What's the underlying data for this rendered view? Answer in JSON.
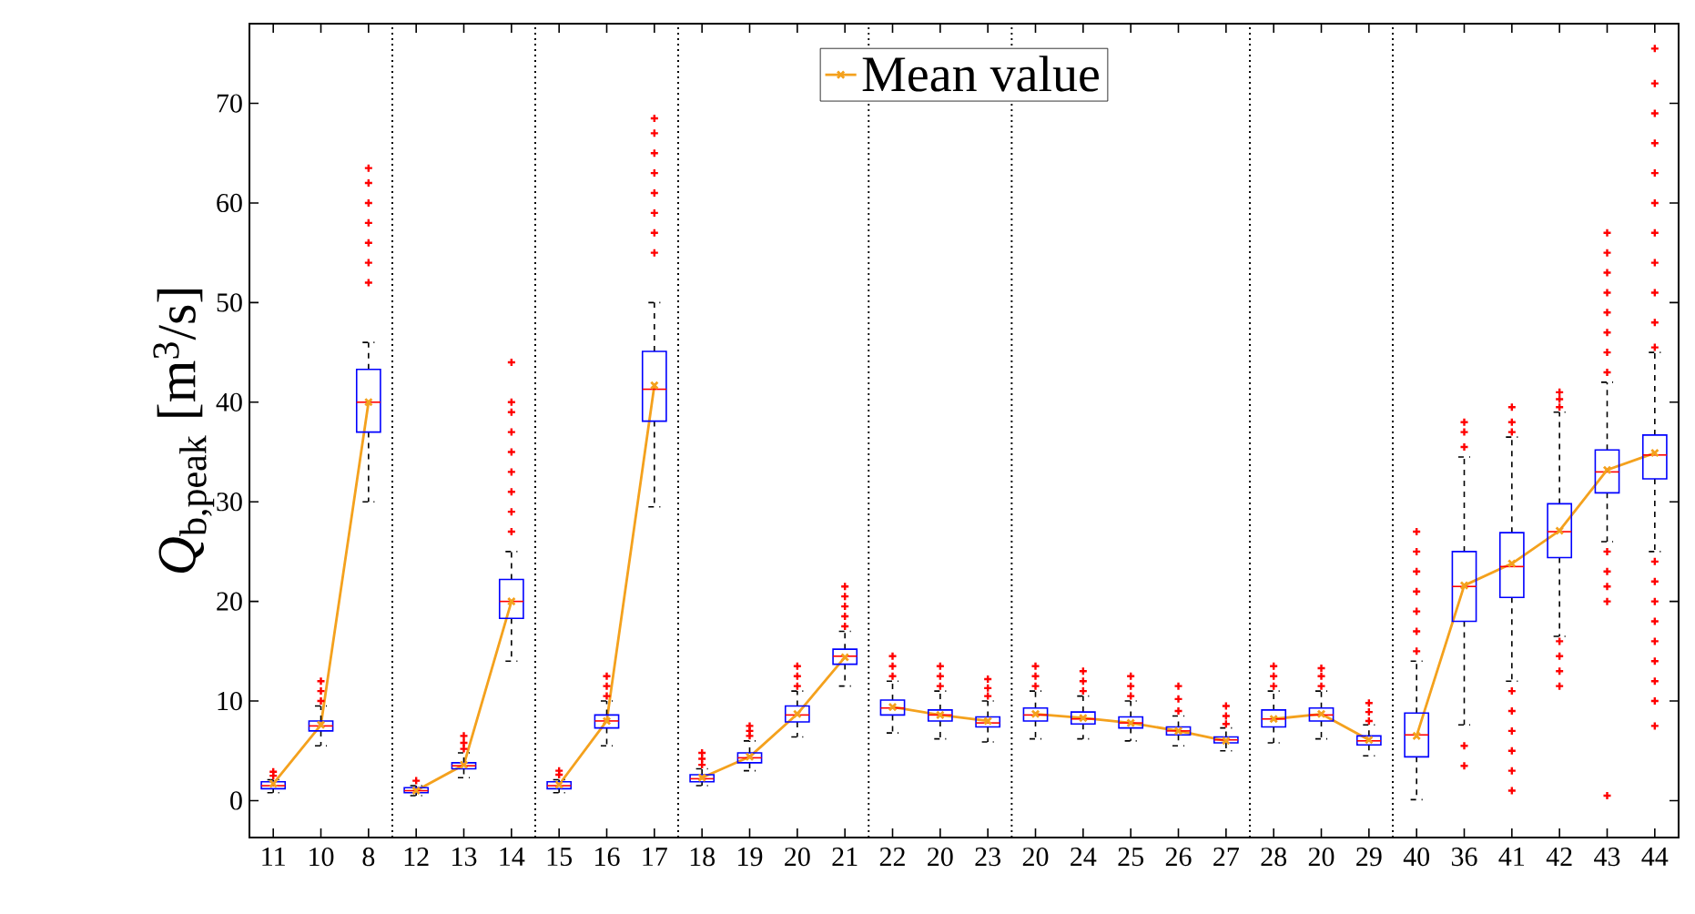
{
  "chart_data": {
    "type": "box",
    "ylabel": "*Q*$_{b,peak}$ [m$^{3}$/s]",
    "categories": [
      "11",
      "10",
      "8",
      "12",
      "13",
      "14",
      "15",
      "16",
      "17",
      "18",
      "19",
      "20",
      "21",
      "22",
      "20",
      "23",
      "20",
      "24",
      "25",
      "26",
      "27",
      "28",
      "20",
      "29",
      "40",
      "36",
      "41",
      "42",
      "43",
      "44"
    ],
    "ylim": [
      -3.7,
      78
    ],
    "yticks": [
      0,
      10,
      20,
      30,
      40,
      50,
      60,
      70
    ],
    "legend": "top",
    "marker": "cross",
    "line_style": "solid",
    "series": [
      {
        "color": "#0000ff",
        "boxes": [
          {
            "low": 0.8,
            "q1": 1.2,
            "median": 1.5,
            "q3": 1.9,
            "high": 2.1,
            "outliers": [
              2.5,
              2.9
            ]
          },
          {
            "low": 5.5,
            "q1": 7.0,
            "median": 7.5,
            "q3": 8.0,
            "high": 9.5,
            "outliers": [
              10,
              11,
              12
            ]
          },
          {
            "low": 30,
            "q1": 37,
            "median": 40,
            "q3": 43.3,
            "high": 46,
            "outliers": [
              52,
              54,
              56,
              58,
              60,
              62,
              63.5
            ]
          },
          {
            "low": 0.5,
            "q1": 0.8,
            "median": 1.0,
            "q3": 1.3,
            "high": 1.5,
            "outliers": [
              2.0
            ]
          },
          {
            "low": 2.3,
            "q1": 3.2,
            "median": 3.5,
            "q3": 3.8,
            "high": 4.8,
            "outliers": [
              5.2,
              5.8,
              6.5
            ]
          },
          {
            "low": 14,
            "q1": 18.3,
            "median": 20,
            "q3": 22.2,
            "high": 25,
            "outliers": [
              27,
              29,
              31,
              33,
              35,
              37,
              39,
              40,
              44
            ]
          },
          {
            "low": 0.8,
            "q1": 1.2,
            "median": 1.5,
            "q3": 1.9,
            "high": 2.1,
            "outliers": [
              2.6,
              3.0
            ]
          },
          {
            "low": 5.5,
            "q1": 7.3,
            "median": 8,
            "q3": 8.6,
            "high": 10,
            "outliers": [
              10.5,
              11.5,
              12.5
            ]
          },
          {
            "low": 29.5,
            "q1": 38.1,
            "median": 41.3,
            "q3": 45.1,
            "high": 50,
            "outliers": [
              55,
              57,
              59,
              61,
              63,
              65,
              67,
              68.5
            ]
          },
          {
            "low": 1.5,
            "q1": 1.9,
            "median": 2.2,
            "q3": 2.6,
            "high": 3.2,
            "outliers": [
              3.6,
              4.2,
              4.8
            ]
          },
          {
            "low": 3,
            "q1": 3.8,
            "median": 4.3,
            "q3": 4.8,
            "high": 6,
            "outliers": [
              6.5,
              7,
              7.5
            ]
          },
          {
            "low": 6.4,
            "q1": 7.9,
            "median": 8.6,
            "q3": 9.5,
            "high": 11,
            "outliers": [
              11.5,
              12.5,
              13.5
            ]
          },
          {
            "low": 11.5,
            "q1": 13.7,
            "median": 14.5,
            "q3": 15.2,
            "high": 17,
            "outliers": [
              17.5,
              18.5,
              19.5,
              20.5,
              21.5
            ]
          },
          {
            "low": 6.8,
            "q1": 8.6,
            "median": 9.3,
            "q3": 10.1,
            "high": 12,
            "outliers": [
              12.5,
              13.5,
              14.5
            ]
          },
          {
            "low": 6.2,
            "q1": 8,
            "median": 8.6,
            "q3": 9.1,
            "high": 11,
            "outliers": [
              11.5,
              12.5,
              13.5
            ]
          },
          {
            "low": 5.9,
            "q1": 7.4,
            "median": 7.8,
            "q3": 8.4,
            "high": 10,
            "outliers": [
              10.5,
              11.3,
              12.2
            ]
          },
          {
            "low": 6.2,
            "q1": 8,
            "median": 8.6,
            "q3": 9.3,
            "high": 11,
            "outliers": [
              11.5,
              12.5,
              13.5
            ]
          },
          {
            "low": 6.2,
            "q1": 7.7,
            "median": 8.2,
            "q3": 8.9,
            "high": 10.5,
            "outliers": [
              11,
              12,
              13
            ]
          },
          {
            "low": 6,
            "q1": 7.3,
            "median": 7.8,
            "q3": 8.4,
            "high": 10,
            "outliers": [
              10.5,
              11.5,
              12.5
            ]
          },
          {
            "low": 5.5,
            "q1": 6.6,
            "median": 7,
            "q3": 7.4,
            "high": 8.5,
            "outliers": [
              9,
              10.2,
              11.5
            ]
          },
          {
            "low": 5,
            "q1": 5.8,
            "median": 6.1,
            "q3": 6.4,
            "high": 7.3,
            "outliers": [
              7.7,
              8.5,
              9.5
            ]
          },
          {
            "low": 5.8,
            "q1": 7.4,
            "median": 8.2,
            "q3": 9.1,
            "high": 11,
            "outliers": [
              11.5,
              12.5,
              13.5
            ]
          },
          {
            "low": 6.2,
            "q1": 8,
            "median": 8.6,
            "q3": 9.3,
            "high": 11,
            "outliers": [
              11.5,
              12.5,
              13.3
            ]
          },
          {
            "low": 4.5,
            "q1": 5.6,
            "median": 6,
            "q3": 6.5,
            "high": 7.6,
            "outliers": [
              8,
              8.9,
              9.8
            ]
          },
          {
            "low": 0.1,
            "q1": 4.4,
            "median": 6.6,
            "q3": 8.8,
            "high": 14,
            "outliers": [
              15,
              17,
              19,
              21,
              23,
              25,
              27
            ]
          },
          {
            "low": 7.6,
            "q1": 18,
            "median": 21.5,
            "q3": 25,
            "high": 34.5,
            "outliers": [
              3.5,
              5.5,
              35.5,
              37,
              38
            ]
          },
          {
            "low": 12,
            "q1": 20.4,
            "median": 23.5,
            "q3": 26.9,
            "high": 36.5,
            "outliers": [
              1,
              3,
              5,
              7,
              9,
              11,
              37,
              38,
              39.5
            ]
          },
          {
            "low": 16.5,
            "q1": 24.4,
            "median": 27,
            "q3": 29.8,
            "high": 39,
            "outliers": [
              11.5,
              13,
              14.5,
              16,
              39.5,
              40.3,
              41
            ]
          },
          {
            "low": 26,
            "q1": 30.9,
            "median": 33,
            "q3": 35.2,
            "high": 42,
            "outliers": [
              0.5,
              20,
              21.5,
              23,
              25,
              43,
              45,
              47,
              49,
              51,
              53,
              55,
              57
            ]
          },
          {
            "low": 25,
            "q1": 32.3,
            "median": 34.7,
            "q3": 36.7,
            "high": 45,
            "outliers": [
              7.5,
              10,
              12,
              14,
              16,
              18,
              20,
              22,
              24,
              45.5,
              48,
              51,
              54,
              57,
              60,
              63,
              66,
              69,
              72,
              75.5
            ]
          }
        ]
      },
      {
        "name": "Mean value",
        "type": "line",
        "color": "#f4a11d",
        "values": [
          1.7,
          7.6,
          40,
          null,
          null,
          null,
          null,
          null,
          null,
          null,
          null,
          null,
          null,
          null,
          null,
          null,
          null,
          null,
          null,
          null,
          null,
          null,
          null,
          null,
          null,
          null,
          null,
          null,
          null,
          null
        ]
      },
      {
        "type": "line",
        "color": "#f4a11d",
        "values": [
          null,
          null,
          null,
          1.0,
          3.6,
          20,
          null,
          null,
          null,
          null,
          null,
          null,
          null,
          null,
          null,
          null,
          null,
          null,
          null,
          null,
          null,
          null,
          null,
          null,
          null,
          null,
          null,
          null,
          null,
          null
        ]
      },
      {
        "type": "line",
        "color": "#f4a11d",
        "values": [
          null,
          null,
          null,
          null,
          null,
          null,
          1.6,
          8,
          41.7,
          null,
          null,
          null,
          null,
          null,
          null,
          null,
          null,
          null,
          null,
          null,
          null,
          null,
          null,
          null,
          null,
          null,
          null,
          null,
          null,
          null
        ]
      },
      {
        "type": "line",
        "color": "#f4a11d",
        "values": [
          null,
          null,
          null,
          null,
          null,
          null,
          null,
          null,
          null,
          2.3,
          4.4,
          8.7,
          14.4,
          null,
          null,
          null,
          null,
          null,
          null,
          null,
          null,
          null,
          null,
          null,
          null,
          null,
          null,
          null,
          null,
          null
        ]
      },
      {
        "type": "line",
        "color": "#f4a11d",
        "values": [
          null,
          null,
          null,
          null,
          null,
          null,
          null,
          null,
          null,
          null,
          null,
          null,
          null,
          9.4,
          8.6,
          8.0,
          null,
          null,
          null,
          null,
          null,
          null,
          null,
          null,
          null,
          null,
          null,
          null,
          null,
          null
        ]
      },
      {
        "type": "line",
        "color": "#f4a11d",
        "values": [
          null,
          null,
          null,
          null,
          null,
          null,
          null,
          null,
          null,
          null,
          null,
          null,
          null,
          null,
          null,
          null,
          8.7,
          8.3,
          7.8,
          7.0,
          6.0,
          null,
          null,
          null,
          null,
          null,
          null,
          null,
          null,
          null
        ]
      },
      {
        "type": "line",
        "color": "#f4a11d",
        "values": [
          null,
          null,
          null,
          null,
          null,
          null,
          null,
          null,
          null,
          null,
          null,
          null,
          null,
          null,
          null,
          null,
          null,
          null,
          null,
          null,
          null,
          8.2,
          8.7,
          6.1,
          null,
          null,
          null,
          null,
          null,
          null
        ]
      },
      {
        "type": "line",
        "color": "#f4a11d",
        "values": [
          null,
          null,
          null,
          null,
          null,
          null,
          null,
          null,
          null,
          null,
          null,
          null,
          null,
          null,
          null,
          null,
          null,
          null,
          null,
          null,
          null,
          null,
          null,
          null,
          6.5,
          21.6,
          23.8,
          27.1,
          33.2,
          34.9
        ]
      }
    ]
  }
}
